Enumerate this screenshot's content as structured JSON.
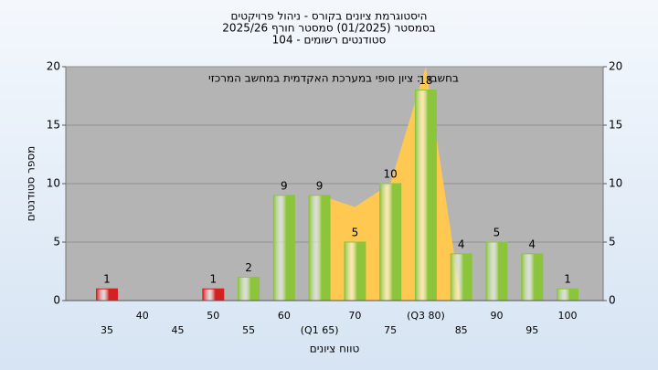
{
  "chart_data": {
    "type": "bar",
    "title": [
      "היסטוגרמת ציונים בקורס - ניהול פרויקטים",
      "בסמסטר (01/2025) סמסטר חורף 2025/26",
      "סטודנטים רשומים - 104"
    ],
    "annotation": "בחשבה : ציון סופי במערכת האקדמית במחשב המרכזי",
    "x_label": "טווח ציונים",
    "y_label": "מספר סטודנטים",
    "categories": [
      "35",
      "40",
      "45",
      "50",
      "55",
      "60",
      "(Q1 65)",
      "70",
      "75",
      "(Q3 80)",
      "85",
      "90",
      "95",
      "100"
    ],
    "series": [
      {
        "type": "area",
        "color": "#ffc850",
        "values": [
          null,
          null,
          null,
          null,
          null,
          null,
          9,
          8,
          10,
          20,
          0,
          null,
          null,
          null
        ]
      },
      {
        "type": "bar",
        "colors": [
          "#d42020",
          "#d42020",
          "#d42020",
          "#d42020",
          "#8cc43c",
          "#8cc43c",
          "#8cc43c",
          "#8cc43c",
          "#8cc43c",
          "#8cc43c",
          "#8cc43c",
          "#8cc43c",
          "#8cc43c",
          "#8cc43c"
        ],
        "values": [
          1,
          0,
          0,
          1,
          2,
          9,
          9,
          5,
          10,
          18,
          4,
          5,
          4,
          1
        ]
      }
    ],
    "ylim": [
      0,
      20
    ],
    "yticks": [
      0,
      5,
      10,
      15,
      20
    ],
    "y2lim": [
      0,
      20
    ],
    "y2ticks": [
      0,
      5,
      10,
      15,
      20
    ],
    "grid": true
  }
}
